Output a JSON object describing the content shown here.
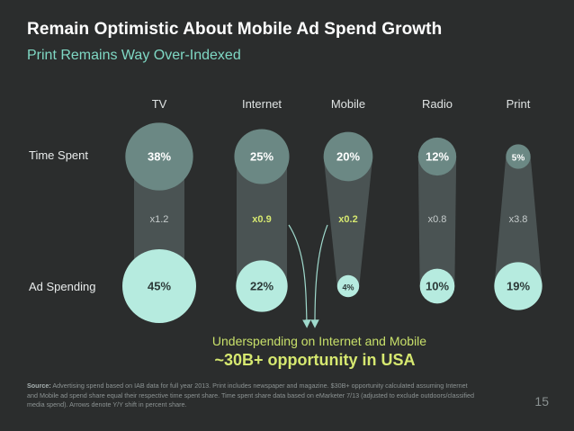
{
  "header": {
    "title": "Remain Optimistic About Mobile Ad Spend Growth",
    "subtitle": "Print Remains Way Over-Indexed"
  },
  "rows": {
    "time_spent": "Time Spent",
    "ad_spending": "Ad Spending"
  },
  "callout": {
    "line1": "Underspending on Internet and Mobile",
    "line2": "~30B+ opportunity in USA"
  },
  "footer": {
    "source_label": "Source:",
    "source_text": "Advertising spend based on IAB data for full year 2013. Print includes newspaper and magazine. $30B+ opportunity calculated assuming Internet and Mobile ad spend share equal their respective time spent share. Time spent share data based on eMarketer 7/13 (adjusted to exclude outdoors/classified media spend). Arrows denote Y/Y shift in percent share.",
    "page_number": "15"
  },
  "colors": {
    "background": "#2b2d2d",
    "connector": "#4a5353",
    "time_bubble": "#6b8884",
    "ad_bubble": "#b6ebdf",
    "highlight": "#d6e870",
    "neutral_text": "#c6cccc"
  },
  "chart_data": {
    "type": "bubble-comparison",
    "categories": [
      "TV",
      "Internet",
      "Mobile",
      "Radio",
      "Print"
    ],
    "series": [
      {
        "name": "Time Spent",
        "values": [
          38,
          25,
          20,
          12,
          5
        ],
        "labels": [
          "38%",
          "25%",
          "20%",
          "12%",
          "5%"
        ]
      },
      {
        "name": "Ad Spending",
        "values": [
          45,
          22,
          4,
          10,
          19
        ],
        "labels": [
          "45%",
          "22%",
          "4%",
          "10%",
          "19%"
        ]
      }
    ],
    "ratios": [
      "x1.2",
      "x0.9",
      "x0.2",
      "x0.8",
      "x3.8"
    ],
    "ratio_highlight": [
      false,
      true,
      true,
      false,
      false
    ],
    "arrows": [
      "Internet",
      "Mobile"
    ]
  }
}
